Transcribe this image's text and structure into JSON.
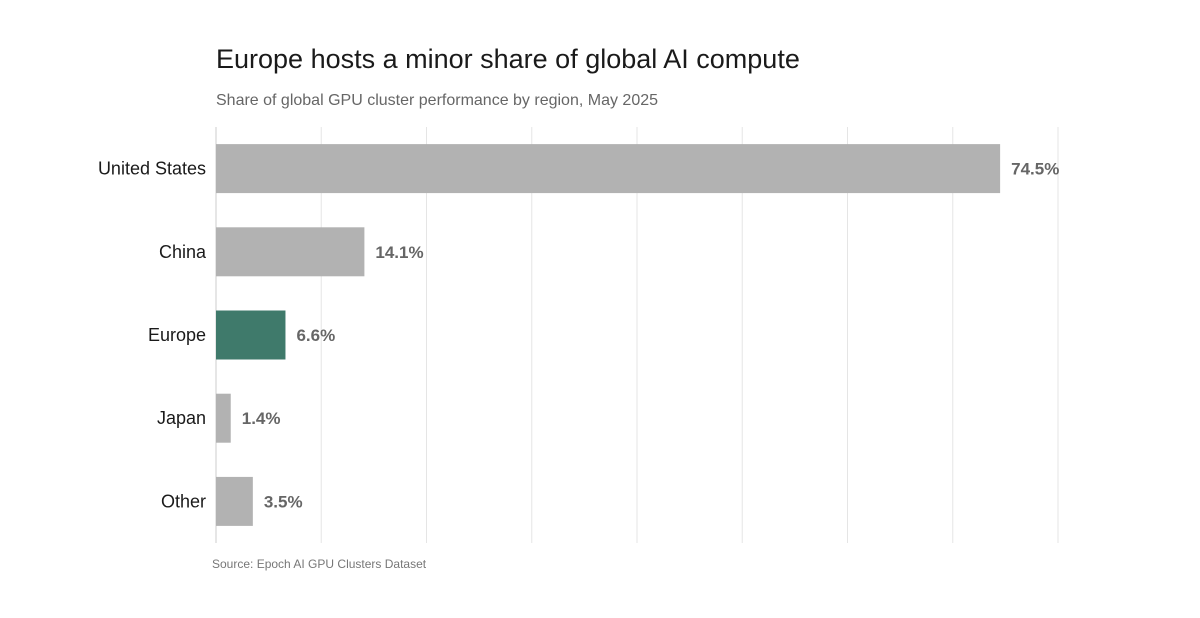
{
  "chart_data": {
    "type": "bar",
    "orientation": "horizontal",
    "title": "Europe hosts a minor share of global AI compute",
    "subtitle": "Share of global GPU cluster performance by region, May 2025",
    "source": "Source: Epoch AI GPU Clusters Dataset",
    "categories": [
      "United States",
      "China",
      "Europe",
      "Japan",
      "Other"
    ],
    "values": [
      74.5,
      14.1,
      6.6,
      1.4,
      3.5
    ],
    "value_labels": [
      "74.5%",
      "14.1%",
      "6.6%",
      "1.4%",
      "3.5%"
    ],
    "highlight_category": "Europe",
    "xlim": [
      0,
      80
    ],
    "grid_step": 10,
    "xlabel": "",
    "ylabel": "",
    "grid": true,
    "colors": {
      "default_bar": "#b2b2b2",
      "highlight_bar": "#3f7a6b",
      "gridline": "#e5e5e5",
      "axis": "#cccccc"
    }
  }
}
